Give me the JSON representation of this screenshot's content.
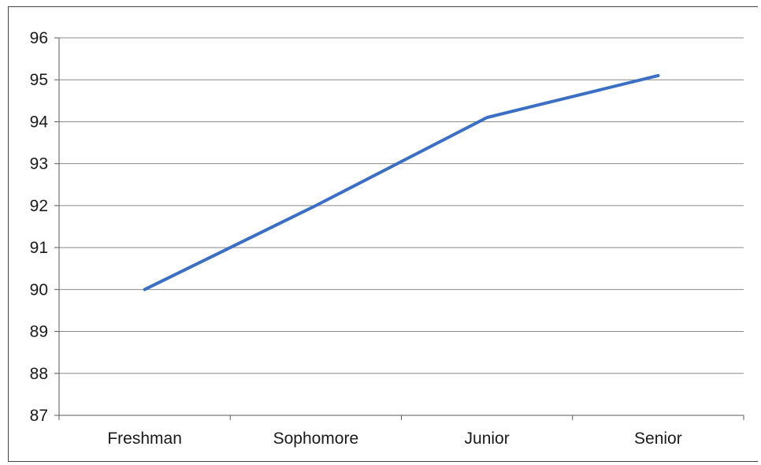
{
  "chart_data": {
    "type": "line",
    "categories": [
      "Freshman",
      "Sophomore",
      "Junior",
      "Senior"
    ],
    "series": [
      {
        "values": [
          90,
          92,
          94.1,
          95.1
        ],
        "color": "#3a6fc4"
      }
    ],
    "ylim": [
      87,
      96
    ],
    "yticks": [
      87,
      88,
      89,
      90,
      91,
      92,
      93,
      94,
      95,
      96
    ],
    "title": "",
    "xlabel": "",
    "ylabel": "",
    "grid": true,
    "legend": "none"
  }
}
